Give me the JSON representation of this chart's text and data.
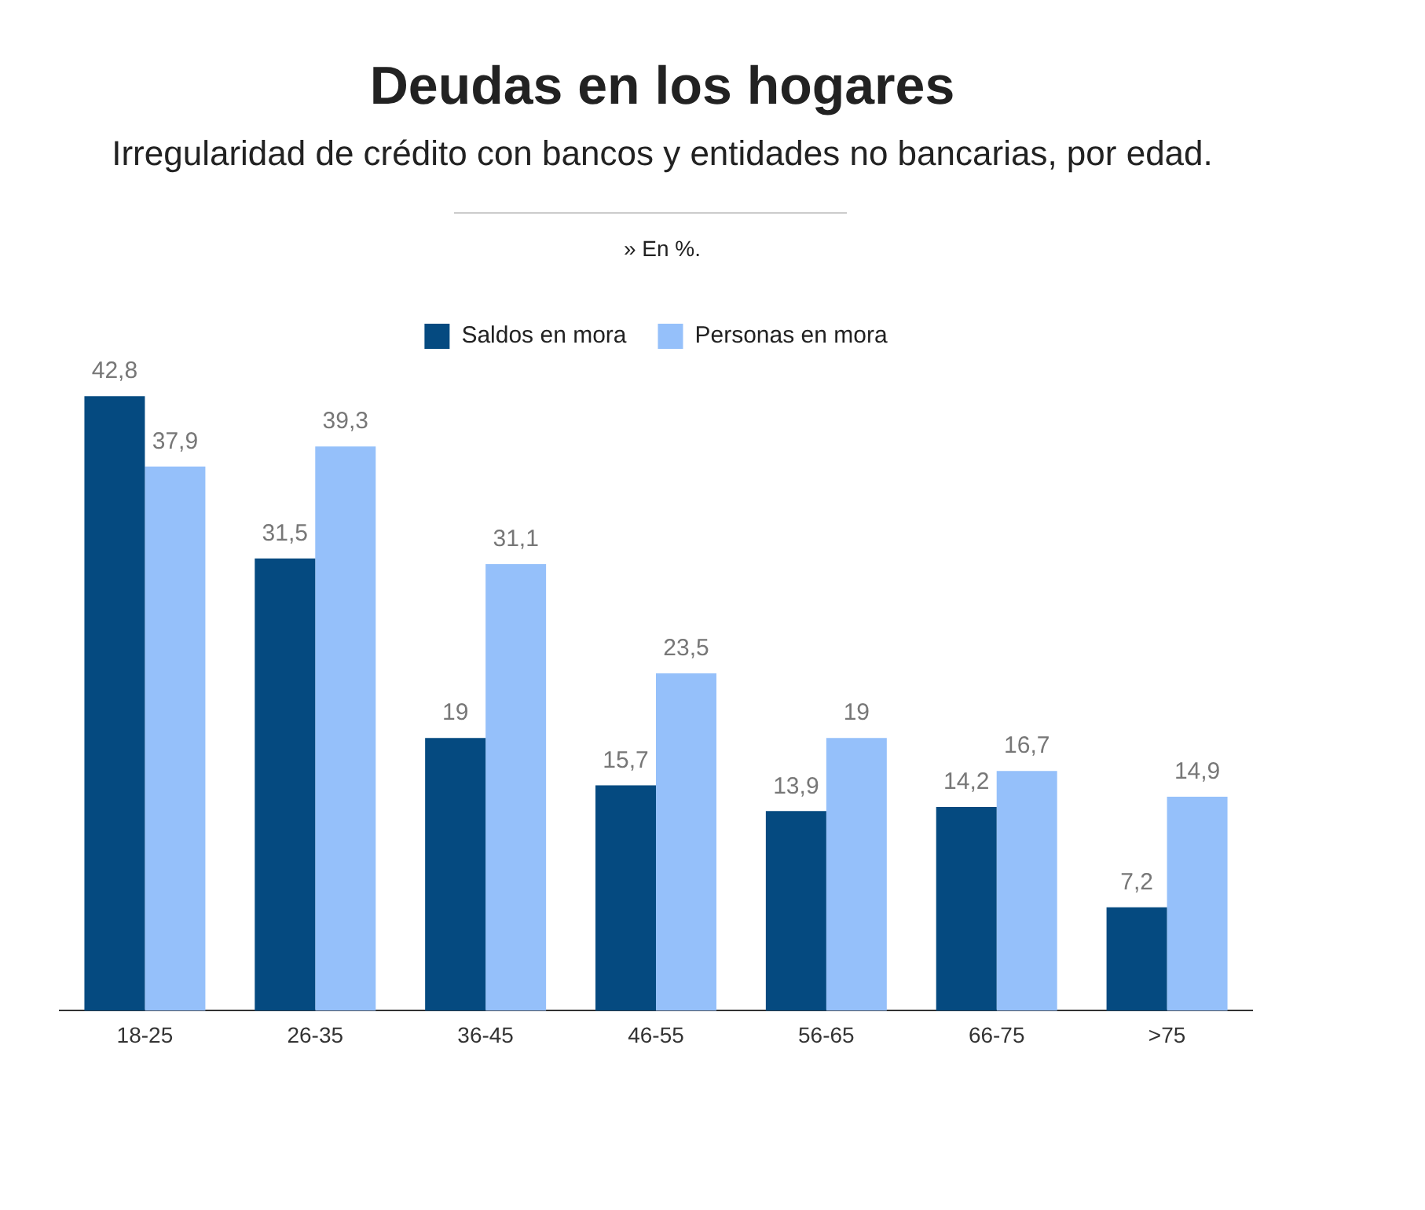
{
  "chart_data": {
    "type": "bar",
    "title": "Deudas en los hogares",
    "subtitle": "Irregularidad de crédito con bancos y entidades no bancarias, por edad.",
    "annotations": [
      "» En %."
    ],
    "categories": [
      "18-25",
      "26-35",
      "36-45",
      "46-55",
      "56-65",
      "66-75",
      ">75"
    ],
    "series": [
      {
        "name": "Saldos en mora",
        "color": "#054a80",
        "values": [
          42.8,
          31.5,
          19,
          15.7,
          13.9,
          14.2,
          7.2
        ],
        "value_labels": [
          "42,8",
          "31,5",
          "19",
          "15,7",
          "13,9",
          "14,2",
          "7,2"
        ]
      },
      {
        "name": "Personas en mora",
        "color": "#95c0fa",
        "values": [
          37.9,
          39.3,
          31.1,
          23.5,
          19,
          16.7,
          14.9
        ],
        "value_labels": [
          "37,9",
          "39,3",
          "31,1",
          "23,5",
          "19",
          "16,7",
          "14,9"
        ]
      }
    ],
    "legend": "top",
    "grid": false
  }
}
